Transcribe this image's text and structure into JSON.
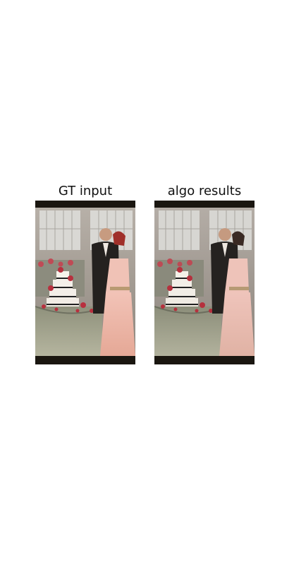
{
  "panels": [
    {
      "title": "GT input"
    },
    {
      "title": "algo results"
    }
  ]
}
